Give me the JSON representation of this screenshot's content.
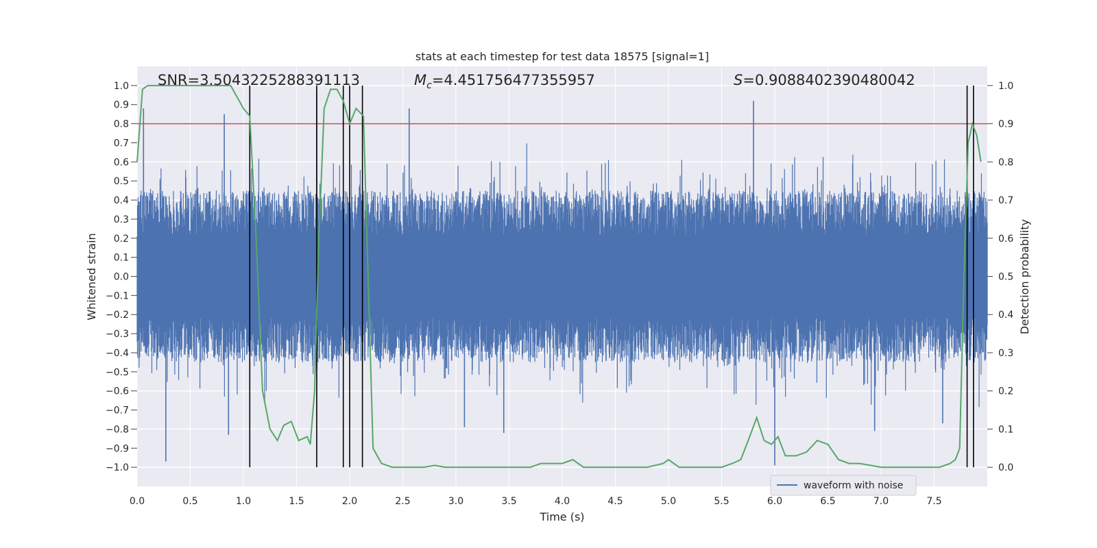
{
  "chart_data": {
    "type": "line",
    "title": "stats at each timestep for test data 18575 [signal=1]",
    "xlabel": "Time (s)",
    "ylabel_left": "Whitened strain",
    "ylabel_right": "Detection probability",
    "xlim": [
      0.0,
      8.0
    ],
    "ylim_left": [
      -1.1,
      1.1
    ],
    "ylim_right": [
      -0.05,
      1.05
    ],
    "x_ticks": [
      0.0,
      0.5,
      1.0,
      1.5,
      2.0,
      2.5,
      3.0,
      3.5,
      4.0,
      4.5,
      5.0,
      5.5,
      6.0,
      6.5,
      7.0,
      7.5
    ],
    "x_tick_labels": [
      "0.0",
      "0.5",
      "1.0",
      "1.5",
      "2.0",
      "2.5",
      "3.0",
      "3.5",
      "4.0",
      "4.5",
      "5.0",
      "5.5",
      "6.0",
      "6.5",
      "7.0",
      "7.5"
    ],
    "y_left_ticks": [
      -1.0,
      -0.9,
      -0.8,
      -0.7,
      -0.6,
      -0.5,
      -0.4,
      -0.3,
      -0.2,
      -0.1,
      0.0,
      0.1,
      0.2,
      0.3,
      0.4,
      0.5,
      0.6,
      0.7,
      0.8,
      0.9,
      1.0
    ],
    "y_left_tick_labels": [
      "−1.0",
      "−0.9",
      "−0.8",
      "−0.7",
      "−0.6",
      "−0.5",
      "−0.4",
      "−0.3",
      "−0.2",
      "−0.1",
      "0.0",
      "0.1",
      "0.2",
      "0.3",
      "0.4",
      "0.5",
      "0.6",
      "0.7",
      "0.8",
      "0.9",
      "1.0"
    ],
    "y_right_ticks": [
      0.0,
      0.1,
      0.2,
      0.3,
      0.4,
      0.5,
      0.6,
      0.7,
      0.8,
      0.9,
      1.0
    ],
    "y_right_tick_labels": [
      "0.0",
      "0.1",
      "0.2",
      "0.3",
      "0.4",
      "0.5",
      "0.6",
      "0.7",
      "0.8",
      "0.9",
      "1.0"
    ],
    "annotations": {
      "snr": "SNR=3.5043225288391113",
      "mc_symbol": "M",
      "mc_subscript": "c",
      "mc_value": "=4.451756477355957",
      "s_symbol": "S",
      "s_value": "=0.9088402390480042"
    },
    "series": [
      {
        "name": "waveform with noise",
        "axis": "left",
        "color": "#4c72b0",
        "description_seed": 18575,
        "duration_s": 8.0,
        "typical_amplitude": 0.45,
        "peak_spikes": [
          {
            "x": 0.27,
            "y": -0.97
          },
          {
            "x": 0.06,
            "y": 0.88
          },
          {
            "x": 0.82,
            "y": 0.85
          },
          {
            "x": 0.86,
            "y": -0.83
          },
          {
            "x": 1.69,
            "y": 0.98
          },
          {
            "x": 2.56,
            "y": 0.88
          },
          {
            "x": 3.08,
            "y": -0.79
          },
          {
            "x": 3.45,
            "y": -0.82
          },
          {
            "x": 5.8,
            "y": 0.92
          },
          {
            "x": 6.0,
            "y": -0.99
          },
          {
            "x": 6.94,
            "y": -0.81
          },
          {
            "x": 7.58,
            "y": -0.77
          }
        ]
      },
      {
        "name": "detection probability",
        "axis": "right",
        "color": "#55a868",
        "x": [
          0.0,
          0.05,
          0.1,
          0.2,
          0.3,
          0.4,
          0.5,
          0.6,
          0.7,
          0.8,
          0.88,
          1.0,
          1.06,
          1.12,
          1.18,
          1.25,
          1.32,
          1.38,
          1.45,
          1.52,
          1.6,
          1.63,
          1.67,
          1.71,
          1.76,
          1.82,
          1.88,
          1.94,
          2.0,
          2.06,
          2.13,
          2.22,
          2.3,
          2.4,
          2.5,
          2.6,
          2.7,
          2.8,
          2.9,
          3.0,
          3.2,
          3.5,
          3.7,
          3.8,
          3.9,
          4.0,
          4.1,
          4.2,
          4.5,
          4.8,
          4.95,
          5.0,
          5.1,
          5.3,
          5.5,
          5.6,
          5.68,
          5.75,
          5.83,
          5.9,
          5.97,
          6.03,
          6.1,
          6.2,
          6.3,
          6.4,
          6.5,
          6.6,
          6.7,
          6.8,
          7.0,
          7.2,
          7.4,
          7.55,
          7.65,
          7.7,
          7.74,
          7.78,
          7.82,
          7.86,
          7.9,
          7.94
        ],
        "y": [
          0.8,
          0.99,
          1.0,
          1.0,
          1.0,
          1.0,
          1.0,
          1.0,
          1.0,
          1.0,
          1.0,
          0.94,
          0.92,
          0.6,
          0.2,
          0.1,
          0.07,
          0.11,
          0.12,
          0.07,
          0.08,
          0.06,
          0.2,
          0.6,
          0.94,
          0.99,
          0.99,
          0.96,
          0.9,
          0.94,
          0.92,
          0.05,
          0.01,
          0.0,
          0.0,
          0.0,
          0.0,
          0.005,
          0.0,
          0.0,
          0.0,
          0.0,
          0.0,
          0.01,
          0.01,
          0.01,
          0.02,
          0.0,
          0.0,
          0.0,
          0.01,
          0.02,
          0.0,
          0.0,
          0.0,
          0.01,
          0.02,
          0.07,
          0.13,
          0.07,
          0.06,
          0.08,
          0.03,
          0.03,
          0.04,
          0.07,
          0.06,
          0.02,
          0.01,
          0.01,
          0.0,
          0.0,
          0.0,
          0.0,
          0.01,
          0.02,
          0.05,
          0.5,
          0.85,
          0.9,
          0.87,
          0.8
        ]
      }
    ],
    "threshold": {
      "value": 0.9,
      "axis": "right",
      "color": "#c44e52"
    },
    "vertical_markers_x": [
      1.06,
      1.69,
      1.94,
      2.0,
      2.12,
      7.81,
      7.87
    ],
    "legend": {
      "entries": [
        "waveform with noise"
      ],
      "loc": "lower-right"
    },
    "grid": true,
    "colors": {
      "background": "#eaeaf2",
      "grid": "#ffffff",
      "marker": "#000000"
    }
  }
}
